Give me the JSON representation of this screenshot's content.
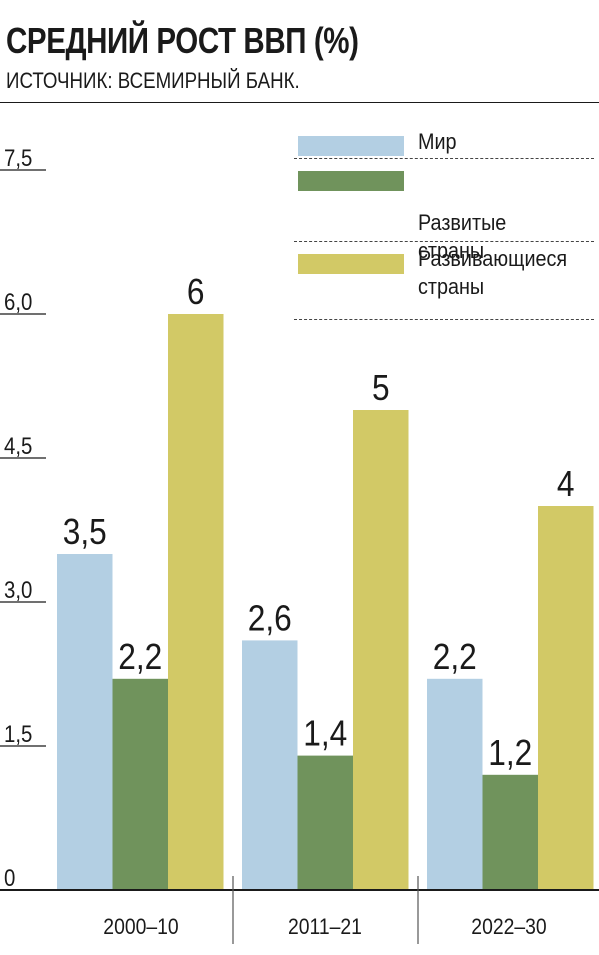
{
  "header": {
    "title": "СРЕДНИЙ РОСТ ВВП (%)",
    "subtitle": "ИСТОЧНИК: ВСЕМИРНЫЙ БАНК."
  },
  "legend": [
    {
      "label_line1": "Мир",
      "label_line2": "",
      "color": "#b3cfe3"
    },
    {
      "label_line1": "Развитые",
      "label_line2": "страны",
      "color": "#70935c"
    },
    {
      "label_line1": "Развивающиеся",
      "label_line2": "страны",
      "color": "#d2c966"
    }
  ],
  "chart_data": {
    "type": "bar",
    "categories": [
      "2000–10",
      "2011–21",
      "2022–30"
    ],
    "series": [
      {
        "name": "Мир",
        "values": [
          3.5,
          2.6,
          2.2
        ],
        "labels": [
          "3,5",
          "2,6",
          "2,2"
        ],
        "color": "#b3cfe3"
      },
      {
        "name": "Развитые страны",
        "values": [
          2.2,
          1.4,
          1.2
        ],
        "labels": [
          "2,2",
          "1,4",
          "1,2"
        ],
        "color": "#70935c"
      },
      {
        "name": "Развивающиеся страны",
        "values": [
          6,
          5,
          4
        ],
        "labels": [
          "6",
          "5",
          "4"
        ],
        "color": "#d2c966"
      }
    ],
    "yticks": [
      0,
      1.5,
      3.0,
      4.5,
      6.0,
      7.5
    ],
    "ytick_labels": [
      "0",
      "1,5",
      "3,0",
      "4,5",
      "6,0",
      "7,5"
    ],
    "ylim": [
      0,
      7.5
    ],
    "grid": true,
    "legend_position": "top-right"
  }
}
